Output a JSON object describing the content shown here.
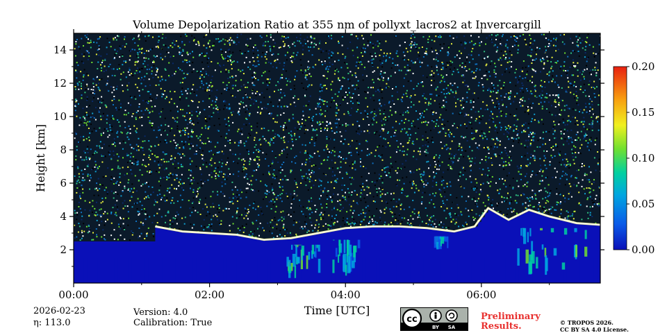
{
  "chart_data": {
    "type": "heatmap",
    "title": "Volume Depolarization Ratio at 355 nm of pollyxt_lacros2 at Invercargill",
    "xlabel": "Time [UTC]",
    "ylabel": "Height [km]",
    "xlim_hours": [
      0,
      7.75
    ],
    "ylim_km": [
      0,
      15
    ],
    "x_ticks": [
      {
        "v": 0,
        "label": "00:00"
      },
      {
        "v": 2,
        "label": "02:00"
      },
      {
        "v": 4,
        "label": "04:00"
      },
      {
        "v": 6,
        "label": "06:00"
      }
    ],
    "y_ticks": [
      {
        "v": 2,
        "label": "2"
      },
      {
        "v": 4,
        "label": "4"
      },
      {
        "v": 6,
        "label": "6"
      },
      {
        "v": 8,
        "label": "8"
      },
      {
        "v": 10,
        "label": "10"
      },
      {
        "v": 12,
        "label": "12"
      },
      {
        "v": 14,
        "label": "14"
      }
    ],
    "colorbar": {
      "range": [
        0,
        0.2
      ],
      "ticks": [
        {
          "v": 0,
          "label": "0.00"
        },
        {
          "v": 0.05,
          "label": "0.05"
        },
        {
          "v": 0.1,
          "label": "0.10"
        },
        {
          "v": 0.15,
          "label": "0.15"
        },
        {
          "v": 0.2,
          "label": "0.20"
        }
      ],
      "colormap": [
        "#0a10b8",
        "#0a5ae8",
        "#00a6e0",
        "#00d0a0",
        "#70e030",
        "#f0f020",
        "#f8a010",
        "#e82010"
      ]
    },
    "features": {
      "boundary_layer_top_km": [
        {
          "t": 1.2,
          "h": 3.4
        },
        {
          "t": 1.6,
          "h": 3.1
        },
        {
          "t": 2.0,
          "h": 3.0
        },
        {
          "t": 2.4,
          "h": 2.9
        },
        {
          "t": 2.8,
          "h": 2.6
        },
        {
          "t": 3.2,
          "h": 2.7
        },
        {
          "t": 3.6,
          "h": 3.0
        },
        {
          "t": 4.0,
          "h": 3.3
        },
        {
          "t": 4.4,
          "h": 3.4
        },
        {
          "t": 4.8,
          "h": 3.4
        },
        {
          "t": 5.2,
          "h": 3.3
        },
        {
          "t": 5.6,
          "h": 3.1
        },
        {
          "t": 5.9,
          "h": 3.4
        },
        {
          "t": 6.1,
          "h": 4.5
        },
        {
          "t": 6.4,
          "h": 3.8
        },
        {
          "t": 6.7,
          "h": 4.4
        },
        {
          "t": 7.0,
          "h": 4.0
        },
        {
          "t": 7.4,
          "h": 3.6
        },
        {
          "t": 7.75,
          "h": 3.5
        }
      ],
      "aerosol_plumes": [
        {
          "t_start": 3.1,
          "t_end": 3.6,
          "h_top": 2.3,
          "h_bottom": 0.3,
          "value": 0.09
        },
        {
          "t_start": 3.8,
          "t_end": 4.2,
          "h_top": 2.6,
          "h_bottom": 0.4,
          "value": 0.08
        },
        {
          "t_start": 5.3,
          "t_end": 5.5,
          "h_top": 2.8,
          "h_bottom": 2.0,
          "value": 0.07
        },
        {
          "t_start": 6.5,
          "t_end": 7.6,
          "h_top": 3.3,
          "h_bottom": 0.2,
          "value": 0.1
        }
      ]
    }
  },
  "meta": {
    "date": "2026-02-23",
    "eta": "η: 113.0",
    "version": "Version: 4.0",
    "calibration": "Calibration: True",
    "preliminary_line1": "Preliminary",
    "preliminary_line2": "Results.",
    "copyright_line1": "© TROPOS 2026.",
    "copyright_line2": "CC BY SA 4.0 License.",
    "cc_label_by": "BY",
    "cc_label_sa": "SA",
    "cc_icon": "cc-icon",
    "by_icon": "by-person-icon",
    "sa_icon": "sa-share-icon"
  }
}
